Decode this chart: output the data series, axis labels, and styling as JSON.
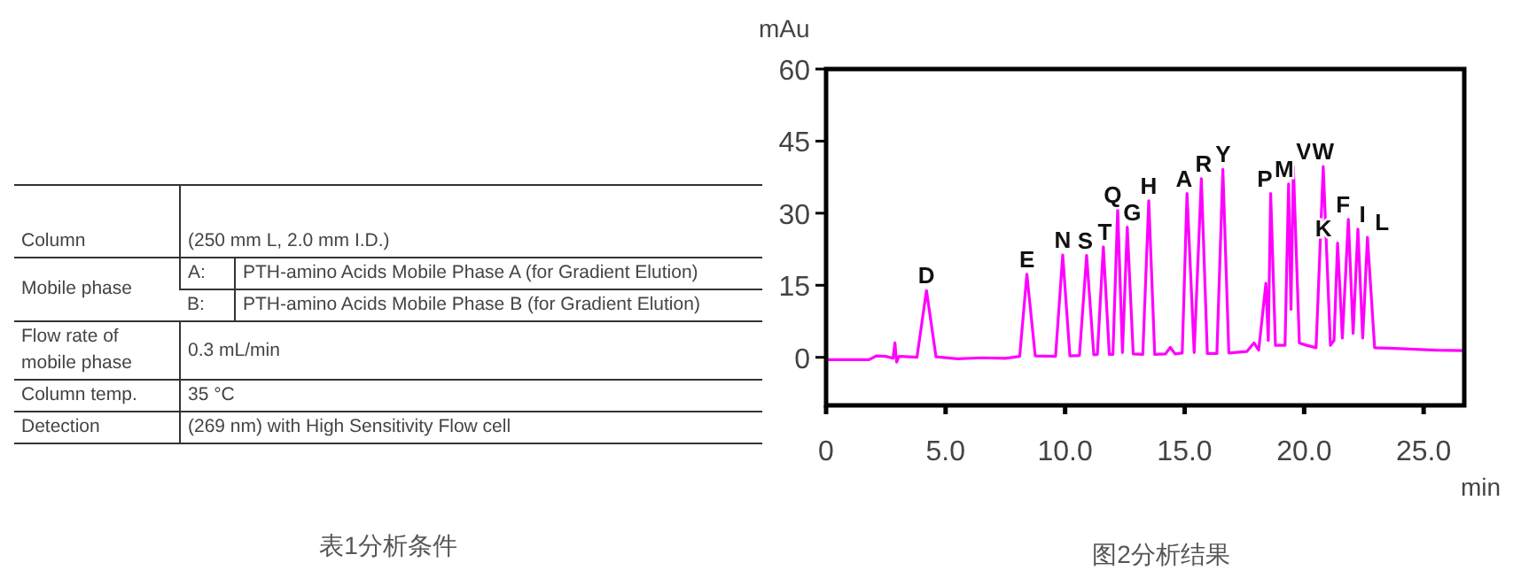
{
  "chart_data": [
    {
      "type": "other",
      "title": "表1分析条件",
      "annotations": [
        "Column",
        "(250 mm L, 2.0 mm I.D.)",
        "Mobile phase",
        "A:",
        "PTH-amino Acids Mobile Phase A (for Gradient Elution)",
        "B:",
        "PTH-amino Acids Mobile Phase B (for Gradient Elution)",
        "Flow rate of mobile phase",
        "0.3 mL/min",
        "Column temp.",
        "35 °C",
        "Detection",
        "(269 nm) with High Sensitivity Flow cell"
      ]
    },
    {
      "type": "line",
      "title": "图2分析结果",
      "xlabel": "min",
      "ylabel": "mAu",
      "xlim": [
        0,
        26.7
      ],
      "ylim": [
        -10,
        60
      ],
      "xticks": [
        0,
        {
          "value": 5,
          "label": "5.0"
        },
        {
          "value": 10,
          "label": "10.0"
        },
        {
          "value": 15,
          "label": "15.0"
        },
        {
          "value": 20,
          "label": "20.0"
        },
        {
          "value": 25,
          "label": "25.0"
        }
      ],
      "yticks": [
        0,
        15,
        30,
        45,
        60
      ],
      "grid": false,
      "marker": "none",
      "line_style": "solid",
      "x": [
        0,
        1.8,
        2.1,
        2.5,
        2.8,
        2.88,
        2.95,
        3.05,
        3.8,
        4.2,
        4.6,
        5.5,
        6.5,
        7.5,
        8.1,
        8.4,
        8.75,
        9.6,
        9.9,
        10.2,
        10.6,
        10.9,
        11.2,
        11.35,
        11.6,
        11.85,
        12.0,
        12.2,
        12.4,
        12.6,
        12.85,
        13.25,
        13.5,
        13.75,
        14.2,
        14.4,
        14.6,
        14.9,
        15.1,
        15.4,
        15.7,
        15.95,
        16.35,
        16.6,
        16.85,
        17.6,
        17.9,
        18.1,
        18.4,
        18.5,
        18.6,
        18.8,
        19.2,
        19.35,
        19.45,
        19.55,
        19.8,
        20.1,
        20.5,
        20.8,
        21.1,
        21.25,
        21.4,
        21.6,
        21.85,
        22.05,
        22.25,
        22.45,
        22.65,
        22.95,
        24.0,
        25.5,
        26.7
      ],
      "series": [
        {
          "color": "#ff00ff",
          "values": [
            -0.5,
            -0.5,
            0.3,
            0.2,
            -0.2,
            3,
            -1,
            0.2,
            0.0,
            13.9,
            0.1,
            -0.3,
            -0.1,
            -0.2,
            0.2,
            17.3,
            0.3,
            0.2,
            21.3,
            0.3,
            0.4,
            21.2,
            0.5,
            0.6,
            23.0,
            0.6,
            0.6,
            30.8,
            1.0,
            27.1,
            0.7,
            0.6,
            32.6,
            0.6,
            0.7,
            2.1,
            0.7,
            0.9,
            34.1,
            1.0,
            37.2,
            0.8,
            0.8,
            39.1,
            0.9,
            1.2,
            3.0,
            1.5,
            15.4,
            3.5,
            34.1,
            2.5,
            2.5,
            36.1,
            10,
            39.7,
            3,
            2.5,
            2.0,
            39.7,
            2.5,
            3.5,
            23.8,
            4,
            28.7,
            5,
            26.7,
            4,
            25.0,
            2.0,
            1.8,
            1.5,
            1.4
          ]
        }
      ],
      "annotations": [
        {
          "text": "D",
          "x": 4.2,
          "y": 13.9
        },
        {
          "text": "E",
          "x": 8.4,
          "y": 17.3
        },
        {
          "text": "N",
          "x": 9.9,
          "y": 21.3
        },
        {
          "text": "S",
          "x": 10.9,
          "y": 21.2
        },
        {
          "text": "T",
          "x": 11.6,
          "y": 23.0
        },
        {
          "text": "Q",
          "x": 12.2,
          "y": 30.8
        },
        {
          "text": "G",
          "x": 12.6,
          "y": 27.1
        },
        {
          "text": "H",
          "x": 13.5,
          "y": 32.6
        },
        {
          "text": "A",
          "x": 15.1,
          "y": 34.1
        },
        {
          "text": "R",
          "x": 15.7,
          "y": 37.2
        },
        {
          "text": "Y",
          "x": 16.6,
          "y": 39.1
        },
        {
          "text": "P",
          "x": 18.6,
          "y": 34.1
        },
        {
          "text": "M",
          "x": 19.35,
          "y": 36.1
        },
        {
          "text": "V",
          "x": 19.55,
          "y": 39.7
        },
        {
          "text": "W",
          "x": 20.8,
          "y": 39.7
        },
        {
          "text": "K",
          "x": 21.4,
          "y": 23.8
        },
        {
          "text": "F",
          "x": 21.85,
          "y": 28.7
        },
        {
          "text": "I",
          "x": 22.25,
          "y": 26.7
        },
        {
          "text": "L",
          "x": 22.65,
          "y": 25.0
        }
      ]
    }
  ]
}
